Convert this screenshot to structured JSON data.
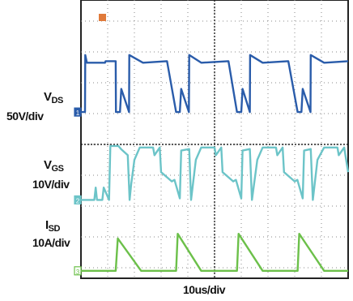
{
  "chart_data": {
    "type": "line",
    "title": "",
    "xlabel": "10us/div",
    "x_range_us": [
      0,
      100
    ],
    "grid": true,
    "channels": [
      {
        "name": "VDS",
        "name_main": "V",
        "name_sub": "DS",
        "scale": "50V/div",
        "color": "#2a5caa",
        "marker": "1",
        "x": [
          0,
          1.5,
          1.6,
          2.2,
          9.0,
          9.2,
          13.0,
          13.1,
          14.6,
          15.1,
          18.0,
          18.1,
          23.2,
          23.3,
          32.0,
          32.2,
          35.6,
          35.7,
          37.0,
          37.5,
          40.4,
          40.5,
          45.0,
          45.2,
          55.0,
          55.2,
          58.4,
          58.5,
          60.0,
          60.5,
          63.2,
          63.3,
          68.0,
          68.2,
          77.4,
          77.6,
          81.1,
          81.2,
          82.5,
          83.0,
          85.9,
          86.0,
          91.0,
          91.2,
          100
        ],
        "y_div": [
          1.05,
          1.05,
          2.9,
          2.65,
          2.65,
          2.7,
          2.7,
          1.05,
          1.05,
          1.8,
          1.05,
          2.9,
          2.65,
          2.65,
          2.7,
          2.7,
          1.05,
          1.05,
          1.05,
          1.8,
          1.05,
          2.9,
          2.65,
          2.65,
          2.7,
          2.7,
          1.05,
          1.05,
          1.05,
          1.8,
          1.05,
          2.9,
          2.65,
          2.65,
          2.7,
          2.7,
          1.05,
          1.05,
          1.05,
          1.8,
          1.05,
          2.9,
          2.65,
          2.65,
          2.7
        ]
      },
      {
        "name": "VGS",
        "name_main": "V",
        "name_sub": "GS",
        "scale": "10V/div",
        "color": "#6cc4c8",
        "marker": "2",
        "x": [
          0,
          5.0,
          5.5,
          6.0,
          8.0,
          8.5,
          10.5,
          11.0,
          14.0,
          15.0,
          17.5,
          18.2,
          18.8,
          20.0,
          22.0,
          27.0,
          27.5,
          29.5,
          30.0,
          34.0,
          35.0,
          37.0,
          37.5,
          40.5,
          41.2,
          43.0,
          45.0,
          50.0,
          50.5,
          52.5,
          53.0,
          57.0,
          58.0,
          60.0,
          60.5,
          63.2,
          64.0,
          66.0,
          68.0,
          73.0,
          73.5,
          75.5,
          76.0,
          80.0,
          81.0,
          83.0,
          83.5,
          86.0,
          86.8,
          88.5,
          91.0,
          96.0,
          96.5,
          98.5,
          100
        ],
        "y_div": [
          -1.8,
          -1.8,
          -1.4,
          -1.8,
          -1.8,
          -1.4,
          -1.8,
          -0.05,
          -0.05,
          -0.15,
          -0.35,
          -1.8,
          -1.3,
          -0.5,
          -0.1,
          -0.1,
          -0.35,
          -0.1,
          -0.9,
          -1.2,
          -1.15,
          -1.75,
          -0.2,
          -0.15,
          -1.8,
          -0.5,
          -0.1,
          -0.1,
          -0.35,
          -0.1,
          -0.9,
          -1.2,
          -1.15,
          -1.75,
          -0.2,
          -0.15,
          -1.8,
          -0.5,
          -0.1,
          -0.1,
          -0.35,
          -0.1,
          -0.9,
          -1.2,
          -1.15,
          -1.75,
          -0.2,
          -0.15,
          -1.8,
          -0.5,
          -0.1,
          -0.1,
          -0.35,
          -0.1,
          -0.9
        ]
      },
      {
        "name": "ISD",
        "name_main": "I",
        "name_sub": "SD",
        "scale": "10A/div",
        "color": "#6cc04a",
        "marker": "3",
        "x": [
          0,
          13.0,
          13.8,
          22.5,
          23.2,
          26.0,
          28.0,
          29.0,
          30.5,
          35.6,
          36.2,
          45.0,
          46.0,
          49.0,
          51.0,
          52.0,
          53.5,
          58.4,
          59.0,
          68.0,
          69.0,
          72.0,
          74.0,
          75.0,
          76.5,
          81.1,
          81.7,
          91.0,
          92.0,
          95.0,
          97.0,
          98.0,
          100
        ],
        "y_div": [
          -4.1,
          -4.1,
          -3.05,
          -4.1,
          -4.1,
          -4.1,
          -4.1,
          -4.1,
          -4.1,
          -4.1,
          -2.9,
          -4.1,
          -4.1,
          -4.1,
          -4.1,
          -4.1,
          -4.1,
          -4.1,
          -2.9,
          -4.1,
          -4.1,
          -4.1,
          -4.1,
          -4.1,
          -4.1,
          -4.1,
          -2.9,
          -4.1,
          -4.1,
          -4.1,
          -4.1,
          -4.1,
          -4.1
        ]
      }
    ]
  },
  "trigger_marker": "T",
  "trigger_color": "#e07a3a"
}
